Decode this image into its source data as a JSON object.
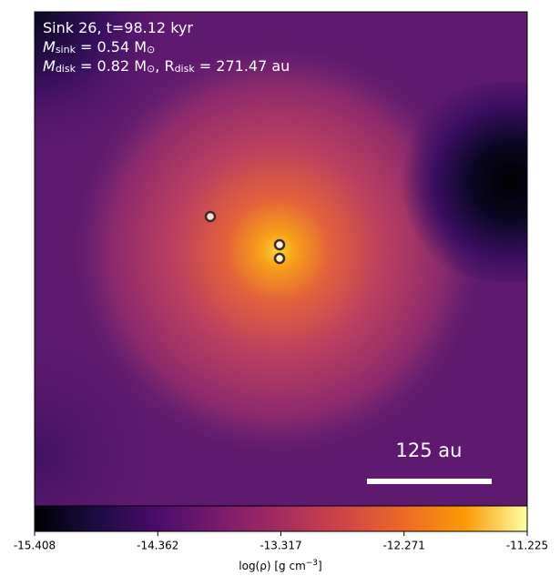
{
  "chart_data": {
    "type": "heatmap",
    "annotations": [
      {
        "parts": [
          "Sink 26, t=98.12 kyr"
        ]
      },
      {
        "parts": [
          "M",
          "sink",
          " = 0.54 M",
          "⊙"
        ]
      },
      {
        "parts": [
          "M",
          "disk",
          " = 0.82 M",
          "⊙",
          ", R",
          "disk",
          " = 271.47 au"
        ]
      }
    ],
    "scale_bar_label": "125 au",
    "colormap": "inferno",
    "colorbar": {
      "lim": [
        -15.408,
        -11.225
      ],
      "ticks": [
        -15.408,
        -14.362,
        -13.317,
        -12.271,
        -11.225
      ],
      "label_parts": [
        "log(ρ) [g cm",
        "−3",
        "]"
      ]
    }
  }
}
